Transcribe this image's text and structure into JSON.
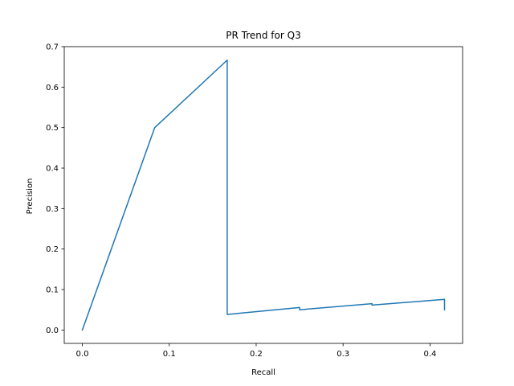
{
  "chart_data": {
    "type": "line",
    "title": "PR Trend for Q3",
    "xlabel": "Recall",
    "ylabel": "Precision",
    "xlim": [
      -0.0208,
      0.4375
    ],
    "ylim": [
      -0.033,
      0.7
    ],
    "xticks": [
      0.0,
      0.1,
      0.2,
      0.3,
      0.4
    ],
    "xtick_labels": [
      "0.0",
      "0.1",
      "0.2",
      "0.3",
      "0.4"
    ],
    "yticks": [
      0.0,
      0.1,
      0.2,
      0.3,
      0.4,
      0.5,
      0.6,
      0.7
    ],
    "ytick_labels": [
      "0.0",
      "0.1",
      "0.2",
      "0.3",
      "0.4",
      "0.5",
      "0.6",
      "0.7"
    ],
    "grid": false,
    "series": [
      {
        "color": "#1f77b4",
        "x": [
          0.0,
          0.0833,
          0.1667,
          0.1667,
          0.25,
          0.25,
          0.3333,
          0.3333,
          0.4167,
          0.4167
        ],
        "y": [
          0.0,
          0.5,
          0.6667,
          0.0385,
          0.0556,
          0.05,
          0.0652,
          0.0615,
          0.0758,
          0.05
        ]
      }
    ]
  }
}
